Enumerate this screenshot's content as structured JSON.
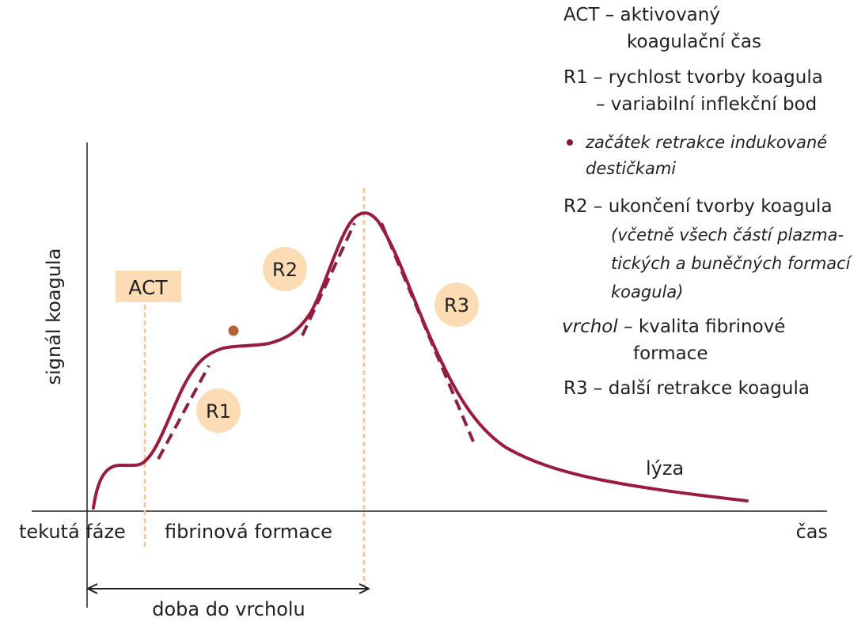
{
  "colors": {
    "curve": "#9b1b3c",
    "tangent": "#8a1f44",
    "guide": "#f6c48f",
    "badge_fill": "#fcdcb4",
    "dot": "#b06236",
    "bullet": "#8a1538",
    "axis": "#231f20"
  },
  "axes": {
    "y_label": "signál koagula",
    "x_label": "čas"
  },
  "phases": {
    "liquid": "tekutá fáze",
    "fibrin": "fibrinová formace"
  },
  "time_to_peak": "doba do vrcholu",
  "badges": {
    "act": "ACT",
    "r1": "R1",
    "r2": "R2",
    "r3": "R3"
  },
  "lysis_label": "lýza",
  "legend": {
    "act_line1": "ACT – aktivovaný",
    "act_line2": "koagulační čas",
    "r1_line1": "R1 – rychlost tvorby koagula",
    "r1_line2": "– variabilní inflekční bod",
    "dot_line1": "začátek retrakce indukované",
    "dot_line2": "destičkami",
    "r2_line1": "R2 – ukončení tvorby koagula",
    "r2_line2": "(včetně všech částí plazma-",
    "r2_line3": "tických a buněčných formací",
    "r2_line4": "koagula)",
    "peak_term": "vrchol",
    "peak_line1": " – kvalita fibrinové",
    "peak_line2": "formace",
    "r3_line1": "R3 – další retrakce koagula"
  }
}
